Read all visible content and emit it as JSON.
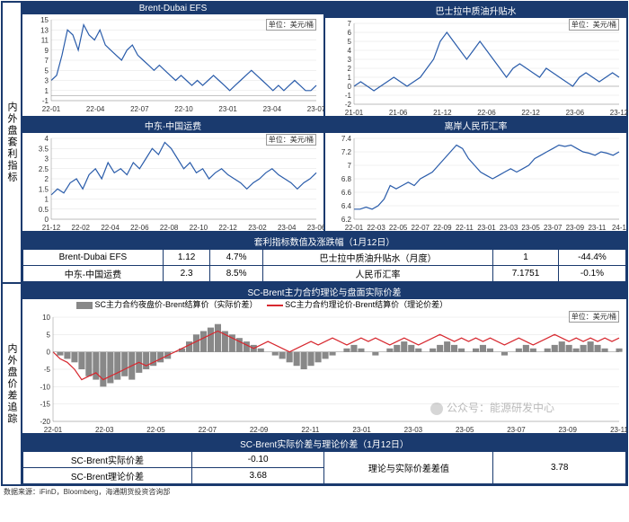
{
  "section1_label": "内外盘套利指标",
  "section2_label": "内外盘价差追踪",
  "unit_label": "单位：美元/桶",
  "colors": {
    "line": "#2a5caa",
    "line2": "#d7282f",
    "bar": "#888888",
    "border": "#1a3a6e",
    "grid": "#e0e0e0"
  },
  "chart1": {
    "title": "Brent-Dubai EFS",
    "ylim": [
      -1,
      15
    ],
    "yticks": [
      -1,
      1,
      3,
      5,
      7,
      9,
      11,
      13,
      15
    ],
    "xticks": [
      "22-01",
      "22-04",
      "22-07",
      "22-10",
      "23-01",
      "23-04",
      "23-07"
    ],
    "data": [
      3,
      4,
      8,
      13,
      12,
      9,
      14,
      12,
      11,
      13,
      10,
      9,
      8,
      7,
      9,
      10,
      8,
      7,
      6,
      5,
      6,
      5,
      4,
      3,
      4,
      3,
      2,
      3,
      2,
      3,
      4,
      3,
      2,
      1,
      2,
      3,
      4,
      5,
      4,
      3,
      2,
      1,
      2,
      1,
      2,
      3,
      2,
      1,
      1,
      2
    ]
  },
  "chart2": {
    "title": "巴士拉中质油升贴水",
    "ylim": [
      -2,
      7
    ],
    "yticks": [
      -2,
      -1,
      0,
      1,
      2,
      3,
      4,
      5,
      6,
      7
    ],
    "xticks": [
      "21-01",
      "21-06",
      "21-12",
      "22-06",
      "22-12",
      "23-06",
      "23-12"
    ],
    "data": [
      0,
      0.5,
      0,
      -0.5,
      0,
      0.5,
      1,
      0.5,
      0,
      0.5,
      1,
      2,
      3,
      5,
      6,
      5,
      4,
      3,
      4,
      5,
      4,
      3,
      2,
      1,
      2,
      2.5,
      2,
      1.5,
      1,
      2,
      1.5,
      1,
      0.5,
      0,
      1,
      1.5,
      1,
      0.5,
      1,
      1.5,
      1
    ]
  },
  "chart3": {
    "title": "中东-中国运费",
    "ylim": [
      0,
      4
    ],
    "yticks": [
      0,
      0.5,
      1,
      1.5,
      2,
      2.5,
      3,
      3.5,
      4
    ],
    "xticks": [
      "21-12",
      "22-02",
      "22-04",
      "22-06",
      "22-08",
      "22-10",
      "22-12",
      "23-02",
      "23-04",
      "23-06"
    ],
    "data": [
      1.2,
      1.5,
      1.3,
      1.8,
      2.0,
      1.5,
      2.2,
      2.5,
      2.0,
      2.8,
      2.3,
      2.5,
      2.2,
      2.8,
      2.5,
      3.0,
      3.5,
      3.2,
      3.8,
      3.5,
      3.0,
      2.5,
      2.8,
      2.3,
      2.5,
      2.0,
      2.3,
      2.5,
      2.2,
      2.0,
      1.8,
      1.5,
      1.8,
      2.0,
      2.3,
      2.5,
      2.2,
      2.0,
      1.8,
      1.5,
      1.8,
      2.0,
      2.3
    ]
  },
  "chart4": {
    "title": "离岸人民币汇率",
    "ylim": [
      6.2,
      7.4
    ],
    "yticks": [
      6.2,
      6.4,
      6.6,
      6.8,
      7.0,
      7.2,
      7.4
    ],
    "xticks": [
      "22-01",
      "22-03",
      "22-05",
      "22-07",
      "22-09",
      "22-11",
      "23-01",
      "23-03",
      "23-05",
      "23-07",
      "23-09",
      "23-11",
      "24-1"
    ],
    "data": [
      6.35,
      6.35,
      6.38,
      6.35,
      6.4,
      6.5,
      6.7,
      6.65,
      6.7,
      6.75,
      6.7,
      6.8,
      6.85,
      6.9,
      7.0,
      7.1,
      7.2,
      7.3,
      7.25,
      7.1,
      7.0,
      6.9,
      6.85,
      6.8,
      6.85,
      6.9,
      6.95,
      6.9,
      6.95,
      7.0,
      7.1,
      7.15,
      7.2,
      7.25,
      7.3,
      7.28,
      7.3,
      7.25,
      7.2,
      7.18,
      7.15,
      7.2,
      7.18,
      7.15,
      7.2
    ]
  },
  "table1": {
    "title": "套利指标数值及涨跌幅（1月12日）",
    "rows": [
      [
        "Brent-Dubai EFS",
        "1.12",
        "4.7%",
        "巴士拉中质油升贴水（月度）",
        "1",
        "-44.4%"
      ],
      [
        "中东-中国运费",
        "2.3",
        "8.5%",
        "人民币汇率",
        "7.1751",
        "-0.1%"
      ]
    ]
  },
  "chart5": {
    "title": "SC-Brent主力合约理论与盘面实际价差",
    "legend_bar": "SC主力合约夜盘价-Brent结算价（实际价差）",
    "legend_line": "SC主力合约理论价-Brent结算价（理论价差）",
    "ylim": [
      -20,
      10
    ],
    "yticks": [
      -20,
      -15,
      -10,
      -5,
      0,
      5,
      10
    ],
    "xticks": [
      "22-01",
      "22-03",
      "22-05",
      "22-07",
      "22-09",
      "22-11",
      "23-01",
      "23-03",
      "23-05",
      "23-07",
      "23-09",
      "23-11"
    ],
    "bars": [
      0,
      -1,
      -2,
      -3,
      -5,
      -7,
      -8,
      -10,
      -9,
      -8,
      -7,
      -8,
      -6,
      -5,
      -4,
      -3,
      -2,
      0,
      1,
      3,
      5,
      6,
      7,
      8,
      6,
      5,
      4,
      3,
      2,
      1,
      0,
      -1,
      -2,
      -3,
      -4,
      -5,
      -4,
      -3,
      -2,
      -1,
      0,
      1,
      2,
      1,
      0,
      -1,
      0,
      1,
      2,
      3,
      2,
      1,
      0,
      1,
      2,
      3,
      2,
      1,
      0,
      1,
      2,
      1,
      0,
      -1,
      0,
      1,
      2,
      1,
      0,
      1,
      2,
      3,
      2,
      1,
      2,
      3,
      2,
      1,
      0,
      1
    ],
    "line": [
      0,
      -2,
      -3,
      -5,
      -8,
      -7,
      -6,
      -8,
      -7,
      -6,
      -5,
      -4,
      -3,
      -4,
      -3,
      -2,
      -1,
      0,
      1,
      2,
      3,
      4,
      5,
      6,
      5,
      4,
      3,
      2,
      1,
      2,
      3,
      2,
      1,
      0,
      1,
      2,
      3,
      2,
      3,
      4,
      3,
      2,
      3,
      4,
      3,
      4,
      3,
      2,
      3,
      4,
      3,
      2,
      3,
      4,
      5,
      4,
      3,
      4,
      3,
      4,
      3,
      4,
      3,
      2,
      3,
      4,
      3,
      2,
      3,
      4,
      5,
      4,
      3,
      4,
      3,
      4,
      3,
      4,
      3,
      4
    ]
  },
  "table2": {
    "title": "SC-Brent实际价差与理论价差（1月12日）",
    "rows": [
      [
        "SC-Brent实际价差",
        "-0.10",
        "理论与实际价差差值",
        "3.78"
      ],
      [
        "SC-Brent理论价差",
        "3.68",
        "",
        ""
      ]
    ]
  },
  "source": "数据来源：iFinD，Bloomberg，海通期货投资咨询部",
  "watermark": "公众号：能源研发中心"
}
